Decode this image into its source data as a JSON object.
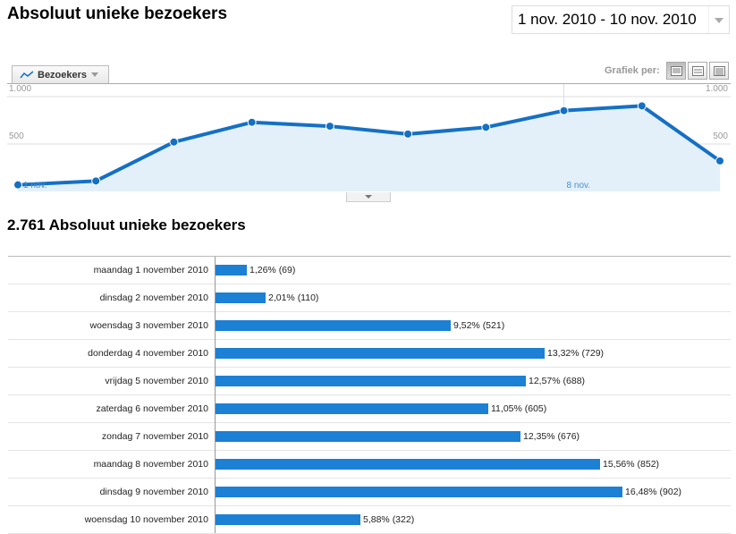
{
  "header": {
    "title": "Absoluut unieke bezoekers",
    "date_range": "1 nov. 2010 - 10 nov. 2010"
  },
  "graph_controls": {
    "metric_tab": "Bezoekers",
    "graph_by_label": "Grafiek per:",
    "views": [
      "dag",
      "week",
      "maand"
    ],
    "active_view": "dag"
  },
  "chart_data": {
    "type": "area",
    "x": [
      "1 nov.",
      "2 nov.",
      "3 nov.",
      "4 nov.",
      "5 nov.",
      "6 nov.",
      "7 nov.",
      "8 nov.",
      "9 nov.",
      "10 nov."
    ],
    "values": [
      69,
      110,
      521,
      729,
      688,
      605,
      676,
      852,
      902,
      322
    ],
    "y_tick_labels": [
      "500",
      "1.000"
    ],
    "x_tick_labels": [
      "1 nov.",
      "8 nov."
    ],
    "ylim": [
      0,
      1000
    ],
    "colors": {
      "line": "#1570c4",
      "fill": "#e3f0fa",
      "bar": "#1c80d4"
    }
  },
  "summary": {
    "total_line": "2.761 Absoluut unieke bezoekers"
  },
  "rows": [
    {
      "label": "maandag 1 november 2010",
      "value": "1,26% (69)",
      "percent": 1.26
    },
    {
      "label": "dinsdag 2 november 2010",
      "value": "2,01% (110)",
      "percent": 2.01
    },
    {
      "label": "woensdag 3 november 2010",
      "value": "9,52% (521)",
      "percent": 9.52
    },
    {
      "label": "donderdag 4 november 2010",
      "value": "13,32% (729)",
      "percent": 13.32
    },
    {
      "label": "vrijdag 5 november 2010",
      "value": "12,57% (688)",
      "percent": 12.57
    },
    {
      "label": "zaterdag 6 november 2010",
      "value": "11,05% (605)",
      "percent": 11.05
    },
    {
      "label": "zondag 7 november 2010",
      "value": "12,35% (676)",
      "percent": 12.35
    },
    {
      "label": "maandag 8 november 2010",
      "value": "15,56% (852)",
      "percent": 15.56
    },
    {
      "label": "dinsdag 9 november 2010",
      "value": "16,48% (902)",
      "percent": 16.48
    },
    {
      "label": "woensdag 10 november 2010",
      "value": "5,88% (322)",
      "percent": 5.88
    }
  ]
}
